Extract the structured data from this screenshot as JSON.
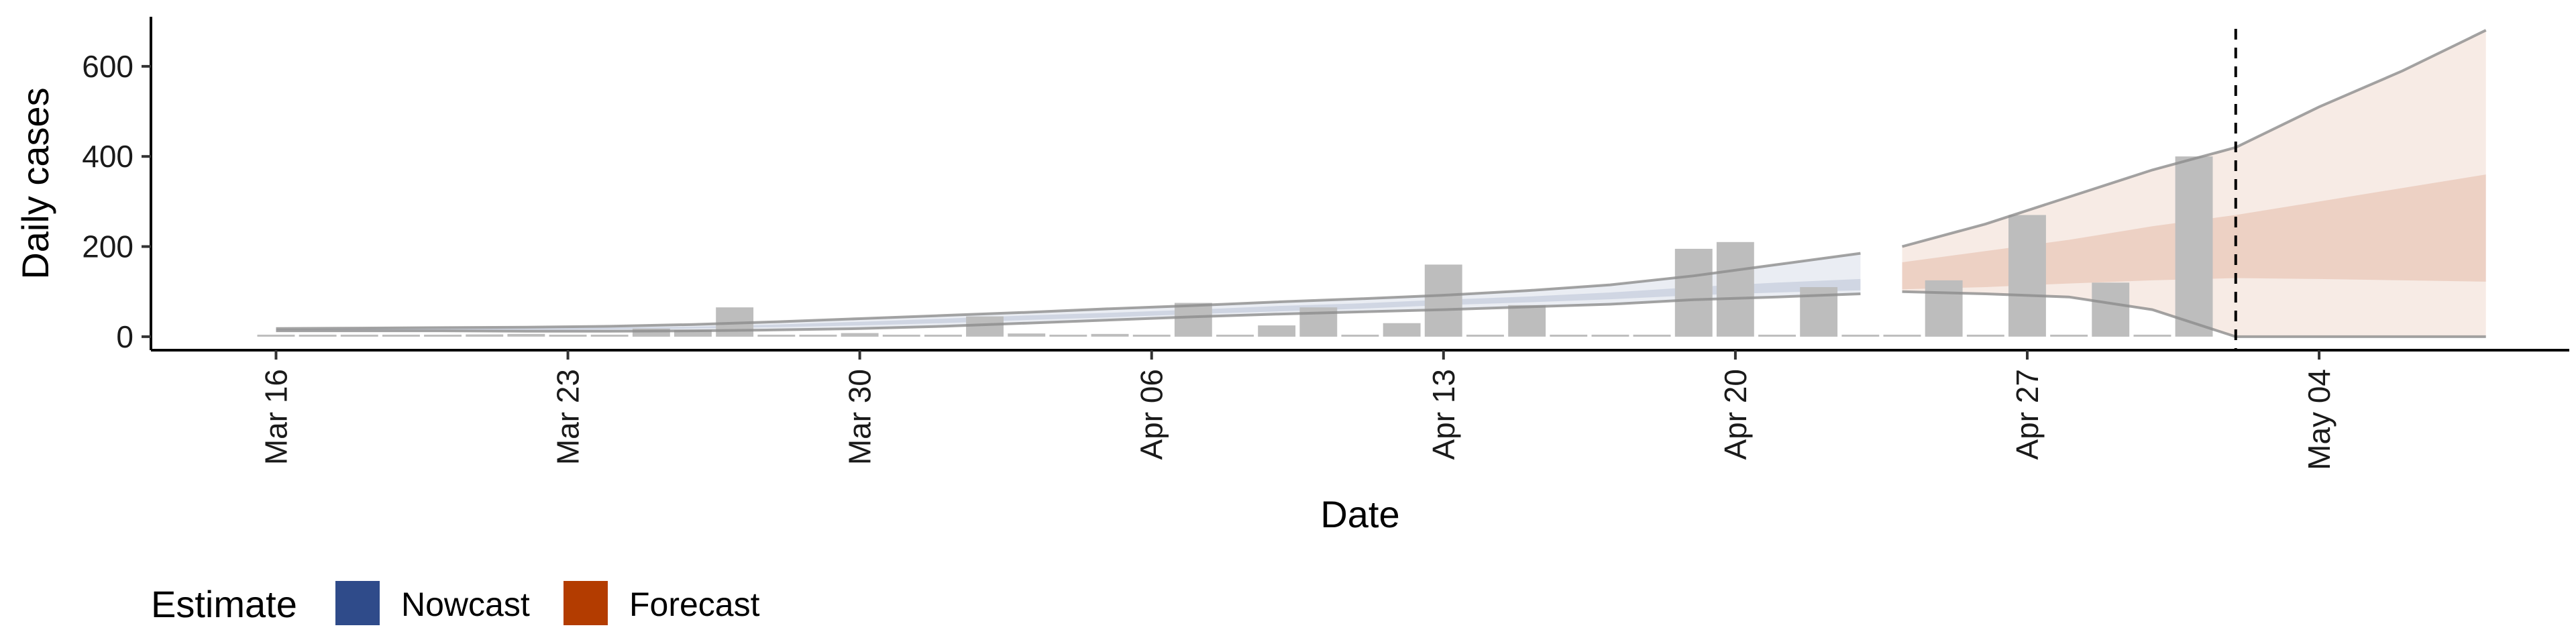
{
  "chart_data": {
    "type": "bar",
    "xlabel": "Date",
    "ylabel": "Daily cases",
    "ylim": [
      -30,
      710
    ],
    "yticks": [
      0,
      200,
      400,
      600
    ],
    "xlim": [
      "2020-03-13",
      "2020-05-10"
    ],
    "xticks": [
      {
        "date": "2020-03-16",
        "label": "Mar 16"
      },
      {
        "date": "2020-03-23",
        "label": "Mar 23"
      },
      {
        "date": "2020-03-30",
        "label": "Mar 30"
      },
      {
        "date": "2020-04-06",
        "label": "Apr 06"
      },
      {
        "date": "2020-04-13",
        "label": "Apr 13"
      },
      {
        "date": "2020-04-20",
        "label": "Apr 20"
      },
      {
        "date": "2020-04-27",
        "label": "Apr 27"
      },
      {
        "date": "2020-05-04",
        "label": "May 04"
      }
    ],
    "grid": false,
    "bars": {
      "color": "#bdbdbd",
      "dates": [
        "2020-03-16",
        "2020-03-17",
        "2020-03-18",
        "2020-03-19",
        "2020-03-20",
        "2020-03-21",
        "2020-03-22",
        "2020-03-23",
        "2020-03-24",
        "2020-03-25",
        "2020-03-26",
        "2020-03-27",
        "2020-03-28",
        "2020-03-29",
        "2020-03-30",
        "2020-03-31",
        "2020-04-01",
        "2020-04-02",
        "2020-04-03",
        "2020-04-04",
        "2020-04-05",
        "2020-04-06",
        "2020-04-07",
        "2020-04-08",
        "2020-04-09",
        "2020-04-10",
        "2020-04-11",
        "2020-04-12",
        "2020-04-13",
        "2020-04-14",
        "2020-04-15",
        "2020-04-16",
        "2020-04-17",
        "2020-04-18",
        "2020-04-19",
        "2020-04-20",
        "2020-04-21",
        "2020-04-22",
        "2020-04-23",
        "2020-04-24",
        "2020-04-25",
        "2020-04-26",
        "2020-04-27",
        "2020-04-28",
        "2020-04-29",
        "2020-04-30",
        "2020-05-01"
      ],
      "values": [
        2,
        1,
        0,
        0,
        4,
        5,
        6,
        3,
        4,
        18,
        15,
        65,
        3,
        2,
        8,
        0,
        0,
        45,
        7,
        0,
        6,
        0,
        75,
        0,
        25,
        65,
        0,
        30,
        160,
        0,
        70,
        3,
        0,
        0,
        195,
        210,
        0,
        110,
        0,
        0,
        125,
        0,
        270,
        0,
        120,
        0,
        400
      ]
    },
    "series": [
      {
        "name": "Nowcast",
        "color": "#2f4b8a",
        "dates": [
          "2020-03-16",
          "2020-03-18",
          "2020-03-20",
          "2020-03-22",
          "2020-03-24",
          "2020-03-26",
          "2020-03-28",
          "2020-03-30",
          "2020-04-01",
          "2020-04-03",
          "2020-04-05",
          "2020-04-07",
          "2020-04-09",
          "2020-04-11",
          "2020-04-13",
          "2020-04-15",
          "2020-04-17",
          "2020-04-19",
          "2020-04-21",
          "2020-04-23"
        ],
        "median": [
          15,
          16,
          16,
          16,
          18,
          20,
          24,
          29,
          35,
          42,
          48,
          55,
          62,
          68,
          76,
          82,
          90,
          100,
          108,
          115
        ],
        "lower50": [
          14,
          15,
          15,
          15,
          16,
          18,
          21,
          25,
          30,
          37,
          43,
          50,
          56,
          62,
          70,
          76,
          83,
          92,
          98,
          103
        ],
        "upper50": [
          16,
          17,
          17,
          18,
          20,
          22,
          27,
          33,
          40,
          47,
          53,
          60,
          68,
          74,
          82,
          89,
          98,
          110,
          120,
          128
        ],
        "lower90": [
          13,
          13,
          13,
          12,
          12,
          13,
          15,
          18,
          23,
          30,
          37,
          44,
          50,
          55,
          60,
          66,
          72,
          82,
          88,
          95
        ],
        "upper90": [
          18,
          19,
          20,
          21,
          23,
          27,
          33,
          40,
          47,
          54,
          62,
          69,
          77,
          84,
          92,
          102,
          115,
          135,
          160,
          185
        ]
      },
      {
        "name": "Forecast",
        "color": "#b33c00",
        "dates": [
          "2020-04-24",
          "2020-04-26",
          "2020-04-28",
          "2020-04-30",
          "2020-05-02",
          "2020-05-04",
          "2020-05-06",
          "2020-05-08"
        ],
        "median": [
          125,
          140,
          160,
          180,
          200,
          220,
          240,
          240
        ],
        "lower50": [
          105,
          110,
          118,
          125,
          130,
          128,
          125,
          122
        ],
        "upper50": [
          165,
          190,
          215,
          245,
          270,
          300,
          330,
          360
        ],
        "lower90": [
          100,
          95,
          88,
          60,
          0,
          0,
          0,
          0
        ],
        "upper90": [
          200,
          250,
          310,
          370,
          420,
          510,
          590,
          680
        ]
      }
    ],
    "vline": "2020-05-02",
    "legend": {
      "title": "Estimate",
      "position": "bottom-left",
      "entries": [
        {
          "label": "Nowcast",
          "color": "#2f4b8a"
        },
        {
          "label": "Forecast",
          "color": "#b33c00"
        }
      ]
    }
  }
}
